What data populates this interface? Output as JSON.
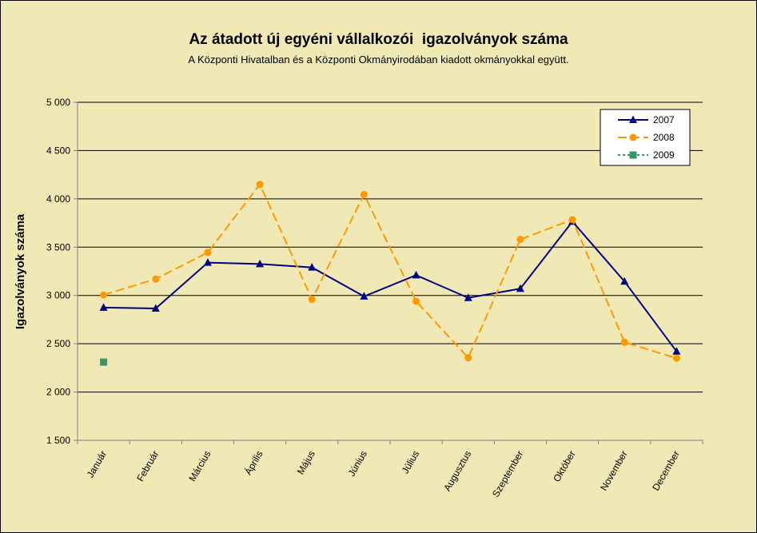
{
  "chart_data": {
    "type": "line",
    "title": "Az átadott új egyéni vállalkozói  igazolványok száma",
    "subtitle": "A Központi Hivatalban és a Központi Okmányirodában kiadott okmányokkal együtt.",
    "xlabel": "",
    "ylabel": "Igazolványok száma",
    "ylim": [
      1500,
      5000
    ],
    "yticks": [
      1500,
      2000,
      2500,
      3000,
      3500,
      4000,
      4500,
      5000
    ],
    "ytick_labels": [
      "1 500",
      "2 000",
      "2 500",
      "3 000",
      "3 500",
      "4 000",
      "4 500",
      "5 000"
    ],
    "grid": true,
    "legend_position": "top-right",
    "categories": [
      "Január",
      "Február",
      "Március",
      "Április",
      "Május",
      "Június",
      "Július",
      "Augusztus",
      "Szeptember",
      "Október",
      "November",
      "December"
    ],
    "series": [
      {
        "name": "2007",
        "color": "#000080",
        "marker": "triangle",
        "dash": "solid",
        "values": [
          2875,
          2865,
          3340,
          3325,
          3290,
          2990,
          3210,
          2975,
          3070,
          3765,
          3145,
          2420
        ]
      },
      {
        "name": "2008",
        "color": "#ff9900",
        "marker": "circle",
        "dash": "long-dash",
        "values": [
          3005,
          3170,
          3445,
          4150,
          2960,
          4045,
          2940,
          2355,
          3580,
          3785,
          2515,
          2350
        ]
      },
      {
        "name": "2009",
        "color": "#339966",
        "marker": "square",
        "dash": "short-dash",
        "values": [
          2310,
          null,
          null,
          null,
          null,
          null,
          null,
          null,
          null,
          null,
          null,
          null
        ]
      }
    ]
  }
}
